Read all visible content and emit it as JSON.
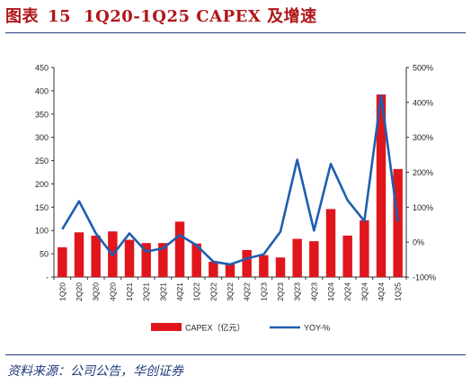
{
  "figure": {
    "label": "图表",
    "number": "15",
    "title": "1Q20-1Q25 CAPEX 及增速"
  },
  "source": "资料来源：公司公告，华创证券",
  "colors": {
    "bar": "#e0161c",
    "line": "#1f5eb0",
    "axis": "#333333",
    "rule": "#1f3a7a",
    "title": "#b0161a"
  },
  "chart_data": {
    "type": "bar",
    "categories": [
      "1Q20",
      "2Q20",
      "3Q20",
      "4Q20",
      "1Q21",
      "2Q21",
      "3Q21",
      "4Q21",
      "1Q22",
      "2Q22",
      "3Q22",
      "4Q22",
      "1Q23",
      "2Q23",
      "3Q23",
      "4Q23",
      "1Q24",
      "2Q24",
      "3Q24",
      "4Q24",
      "1Q25"
    ],
    "series": [
      {
        "name": "CAPEX（亿元）",
        "type": "bar",
        "axis": "left",
        "values": [
          64,
          96,
          89,
          98,
          80,
          73,
          73,
          119,
          72,
          33,
          27,
          58,
          47,
          42,
          82,
          77,
          146,
          89,
          122,
          392,
          232
        ]
      },
      {
        "name": "YOY-%",
        "type": "line",
        "axis": "right",
        "values": [
          37,
          117,
          25,
          -37,
          25,
          -27,
          -18,
          20,
          -9,
          -56,
          -64,
          -47,
          -35,
          30,
          236,
          33,
          224,
          120,
          60,
          420,
          59
        ]
      }
    ],
    "left_axis": {
      "min": 0,
      "max": 450,
      "ticks": [
        "-",
        "50",
        "100",
        "150",
        "200",
        "250",
        "300",
        "350",
        "400",
        "450"
      ]
    },
    "right_axis": {
      "min": -100,
      "max": 500,
      "ticks": [
        "-100%",
        "0%",
        "100%",
        "200%",
        "300%",
        "400%",
        "500%"
      ]
    },
    "legend": {
      "position": "bottom",
      "entries": [
        "CAPEX（亿元）",
        "YOY-%"
      ]
    },
    "grid": false
  }
}
